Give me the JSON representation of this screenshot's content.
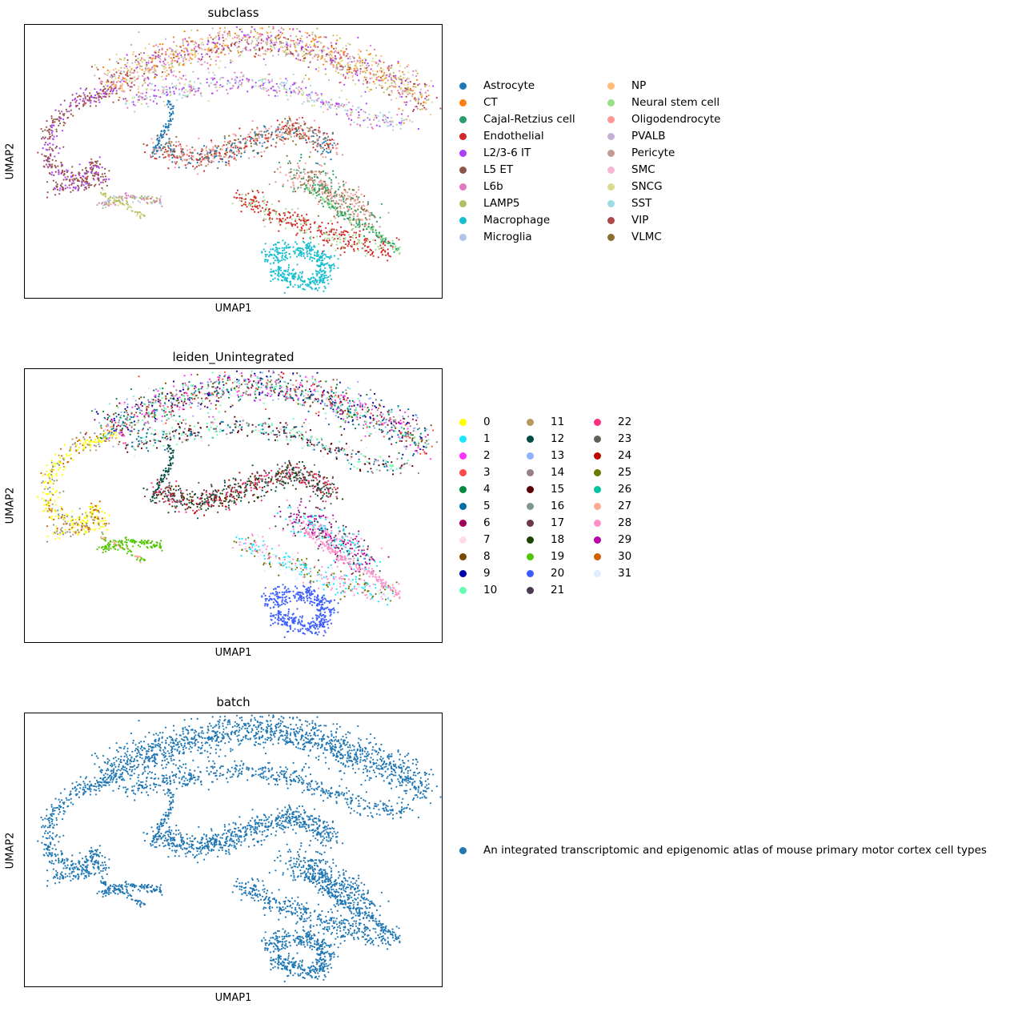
{
  "panels": [
    {
      "title": "subclass",
      "xlabel": "UMAP1",
      "ylabel": "UMAP2",
      "legend_columns": 2,
      "legend": [
        {
          "label": "Astrocyte",
          "color": "#1f77b4"
        },
        {
          "label": "CT",
          "color": "#ff7f0e"
        },
        {
          "label": "Cajal-Retzius cell",
          "color": "#279e68"
        },
        {
          "label": "Endothelial",
          "color": "#d62728"
        },
        {
          "label": "L2/3-6 IT",
          "color": "#aa40fc"
        },
        {
          "label": "L5 ET",
          "color": "#8c564b"
        },
        {
          "label": "L6b",
          "color": "#e377c2"
        },
        {
          "label": "LAMP5",
          "color": "#b5bd61"
        },
        {
          "label": "Macrophage",
          "color": "#17becf"
        },
        {
          "label": "Microglia",
          "color": "#aec7e8"
        },
        {
          "label": "NP",
          "color": "#ffbb78"
        },
        {
          "label": "Neural stem cell",
          "color": "#98df8a"
        },
        {
          "label": "Oligodendrocyte",
          "color": "#ff9896"
        },
        {
          "label": "PVALB",
          "color": "#c5b0d5"
        },
        {
          "label": "Pericyte",
          "color": "#c49c94"
        },
        {
          "label": "SMC",
          "color": "#f7b6d2"
        },
        {
          "label": "SNCG",
          "color": "#dbdb8d"
        },
        {
          "label": "SST",
          "color": "#9edae5"
        },
        {
          "label": "VIP",
          "color": "#ad494a"
        },
        {
          "label": "VLMC",
          "color": "#8c6d31"
        }
      ]
    },
    {
      "title": "leiden_Unintegrated",
      "xlabel": "UMAP1",
      "ylabel": "UMAP2",
      "legend_columns": 3,
      "legend": [
        {
          "label": "0",
          "color": "#ffff00"
        },
        {
          "label": "1",
          "color": "#1ce6ff"
        },
        {
          "label": "2",
          "color": "#ff34ff"
        },
        {
          "label": "3",
          "color": "#ff4a46"
        },
        {
          "label": "4",
          "color": "#008941"
        },
        {
          "label": "5",
          "color": "#006fa6"
        },
        {
          "label": "6",
          "color": "#a30059"
        },
        {
          "label": "7",
          "color": "#ffdbe5"
        },
        {
          "label": "8",
          "color": "#7a4900"
        },
        {
          "label": "9",
          "color": "#0000a6"
        },
        {
          "label": "10",
          "color": "#63ffac"
        },
        {
          "label": "11",
          "color": "#b79762"
        },
        {
          "label": "12",
          "color": "#004d43"
        },
        {
          "label": "13",
          "color": "#8fb0ff"
        },
        {
          "label": "14",
          "color": "#997d87"
        },
        {
          "label": "15",
          "color": "#5a0007"
        },
        {
          "label": "16",
          "color": "#809693"
        },
        {
          "label": "17",
          "color": "#6a3a4c"
        },
        {
          "label": "18",
          "color": "#1b4400"
        },
        {
          "label": "19",
          "color": "#4fc601"
        },
        {
          "label": "20",
          "color": "#3b5dff"
        },
        {
          "label": "21",
          "color": "#4a3b53"
        },
        {
          "label": "22",
          "color": "#ff2f80"
        },
        {
          "label": "23",
          "color": "#61615a"
        },
        {
          "label": "24",
          "color": "#ba0900"
        },
        {
          "label": "25",
          "color": "#6b7900"
        },
        {
          "label": "26",
          "color": "#00c2a0"
        },
        {
          "label": "27",
          "color": "#ffaa92"
        },
        {
          "label": "28",
          "color": "#ff90c9"
        },
        {
          "label": "29",
          "color": "#b903aa"
        },
        {
          "label": "30",
          "color": "#d16100"
        },
        {
          "label": "31",
          "color": "#ddefff"
        }
      ]
    },
    {
      "title": "batch",
      "xlabel": "UMAP1",
      "ylabel": "UMAP2",
      "legend_columns": 1,
      "legend": [
        {
          "label": "An integrated transcriptomic and epigenomic atlas of mouse primary motor cortex cell types",
          "color": "#1f77b4"
        }
      ]
    }
  ],
  "chart_data": [
    {
      "type": "scatter",
      "title": "subclass",
      "xlabel": "UMAP1",
      "ylabel": "UMAP2",
      "xticks": [],
      "yticks": [],
      "grid": false,
      "legend_position": "right",
      "series": [
        {
          "name": "Astrocyte",
          "color": "#1f77b4"
        },
        {
          "name": "CT",
          "color": "#ff7f0e"
        },
        {
          "name": "Cajal-Retzius cell",
          "color": "#279e68"
        },
        {
          "name": "Endothelial",
          "color": "#d62728"
        },
        {
          "name": "L2/3-6 IT",
          "color": "#aa40fc"
        },
        {
          "name": "L5 ET",
          "color": "#8c564b"
        },
        {
          "name": "L6b",
          "color": "#e377c2"
        },
        {
          "name": "LAMP5",
          "color": "#b5bd61"
        },
        {
          "name": "Macrophage",
          "color": "#17becf"
        },
        {
          "name": "Microglia",
          "color": "#aec7e8"
        },
        {
          "name": "NP",
          "color": "#ffbb78"
        },
        {
          "name": "Neural stem cell",
          "color": "#98df8a"
        },
        {
          "name": "Oligodendrocyte",
          "color": "#ff9896"
        },
        {
          "name": "PVALB",
          "color": "#c5b0d5"
        },
        {
          "name": "Pericyte",
          "color": "#c49c94"
        },
        {
          "name": "SMC",
          "color": "#f7b6d2"
        },
        {
          "name": "SNCG",
          "color": "#dbdb8d"
        },
        {
          "name": "SST",
          "color": "#9edae5"
        },
        {
          "name": "VIP",
          "color": "#ad494a"
        },
        {
          "name": "VLMC",
          "color": "#8c6d31"
        }
      ]
    },
    {
      "type": "scatter",
      "title": "leiden_Unintegrated",
      "xlabel": "UMAP1",
      "ylabel": "UMAP2",
      "xticks": [],
      "yticks": [],
      "grid": false,
      "legend_position": "right",
      "series_count": 32
    },
    {
      "type": "scatter",
      "title": "batch",
      "xlabel": "UMAP1",
      "ylabel": "UMAP2",
      "xticks": [],
      "yticks": [],
      "grid": false,
      "legend_position": "right",
      "series": [
        {
          "name": "An integrated transcriptomic and epigenomic atlas of mouse primary motor cortex cell types",
          "color": "#1f77b4"
        }
      ]
    }
  ]
}
